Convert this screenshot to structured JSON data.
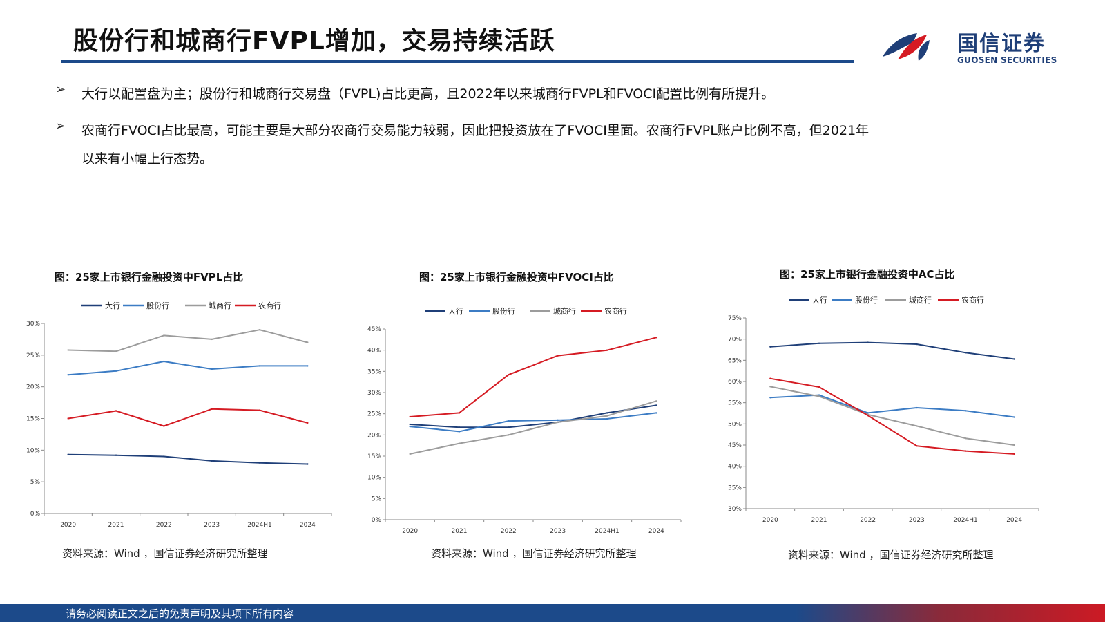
{
  "header": {
    "title": "股份行和城商行FVPL增加，交易持续活跃",
    "logo_cn": "国信证券",
    "logo_en": "GUOSEN SECURITIES"
  },
  "bullets": [
    {
      "marker": "➢",
      "lines": [
        "大行以配置盘为主；股份行和城商行交易盘（FVPL)占比更高，且2022年以来城商行FVPL和FVOCI配置比例有所提升。"
      ]
    },
    {
      "marker": "➢",
      "lines": [
        "农商行FVOCI占比最高，可能主要是大部分农商行交易能力较弱，因此把投资放在了FVOCI里面。农商行FVPL账户比例不高，但2021年",
        "以来有小幅上行态势。"
      ]
    }
  ],
  "chart_data": [
    {
      "type": "line",
      "title": "图：25家上市银行金融投资中FVPL占比",
      "source": "资料来源：Wind ，国信证券经济研究所整理",
      "categories": [
        "2020",
        "2021",
        "2022",
        "2023",
        "2024H1",
        "2024"
      ],
      "ylim": [
        0,
        30
      ],
      "yticks": [
        0,
        5,
        10,
        15,
        20,
        25,
        30
      ],
      "ytick_labels": [
        "0%",
        "5%",
        "10%",
        "15%",
        "20%",
        "25%",
        "30%"
      ],
      "grid": false,
      "legend_position": "top",
      "series": [
        {
          "name": "大行",
          "color": "#1f3f78",
          "values": [
            9.3,
            9.2,
            9.0,
            8.3,
            8.0,
            7.8
          ]
        },
        {
          "name": "股份行",
          "color": "#3c7cc4",
          "values": [
            21.9,
            22.5,
            24.0,
            22.8,
            23.3,
            23.3
          ]
        },
        {
          "name": "城商行",
          "color": "#9c9c9c",
          "values": [
            25.8,
            25.6,
            28.1,
            27.5,
            29.0,
            27.0
          ]
        },
        {
          "name": "农商行",
          "color": "#d51b23",
          "values": [
            15.0,
            16.2,
            13.8,
            16.5,
            16.3,
            14.3
          ]
        }
      ]
    },
    {
      "type": "line",
      "title": "图：25家上市银行金融投资中FVOCI占比",
      "source": "资料来源：Wind ，国信证券经济研究所整理",
      "categories": [
        "2020",
        "2021",
        "2022",
        "2023",
        "2024H1",
        "2024"
      ],
      "ylim": [
        0,
        45
      ],
      "yticks": [
        0,
        5,
        10,
        15,
        20,
        25,
        30,
        35,
        40,
        45
      ],
      "ytick_labels": [
        "0%",
        "5%",
        "10%",
        "15%",
        "20%",
        "25%",
        "30%",
        "35%",
        "40%",
        "45%"
      ],
      "grid": false,
      "legend_position": "top",
      "series": [
        {
          "name": "大行",
          "color": "#1f3f78",
          "values": [
            22.5,
            21.8,
            21.8,
            23.0,
            25.2,
            27.0
          ]
        },
        {
          "name": "股份行",
          "color": "#3c7cc4",
          "values": [
            22.0,
            20.8,
            23.3,
            23.5,
            23.8,
            25.2
          ]
        },
        {
          "name": "城商行",
          "color": "#9c9c9c",
          "values": [
            15.5,
            18.0,
            20.0,
            23.0,
            24.5,
            28.0
          ]
        },
        {
          "name": "农商行",
          "color": "#d51b23",
          "values": [
            24.3,
            25.2,
            34.2,
            38.7,
            40.0,
            43.0
          ]
        }
      ]
    },
    {
      "type": "line",
      "title": "图：25家上市银行金融投资中AC占比",
      "source": "资料来源：Wind ，国信证券经济研究所整理",
      "categories": [
        "2020",
        "2021",
        "2022",
        "2023",
        "2024H1",
        "2024"
      ],
      "ylim": [
        30,
        75
      ],
      "yticks": [
        30,
        35,
        40,
        45,
        50,
        55,
        60,
        65,
        70,
        75
      ],
      "ytick_labels": [
        "30%",
        "35%",
        "40%",
        "45%",
        "50%",
        "55%",
        "60%",
        "65%",
        "70%",
        "75%"
      ],
      "grid": false,
      "legend_position": "top",
      "series": [
        {
          "name": "大行",
          "color": "#1f3f78",
          "values": [
            68.2,
            69.0,
            69.2,
            68.8,
            66.8,
            65.3
          ]
        },
        {
          "name": "股份行",
          "color": "#3c7cc4",
          "values": [
            56.2,
            56.8,
            52.6,
            53.8,
            53.1,
            51.6
          ]
        },
        {
          "name": "城商行",
          "color": "#9c9c9c",
          "values": [
            58.8,
            56.5,
            52.2,
            49.5,
            46.6,
            45.0
          ]
        },
        {
          "name": "农商行",
          "color": "#d51b23",
          "values": [
            60.7,
            58.7,
            52.0,
            44.8,
            43.6,
            42.9
          ]
        }
      ]
    }
  ],
  "footer": {
    "disclaimer": "请务必阅读正文之后的免责声明及其项下所有内容"
  }
}
